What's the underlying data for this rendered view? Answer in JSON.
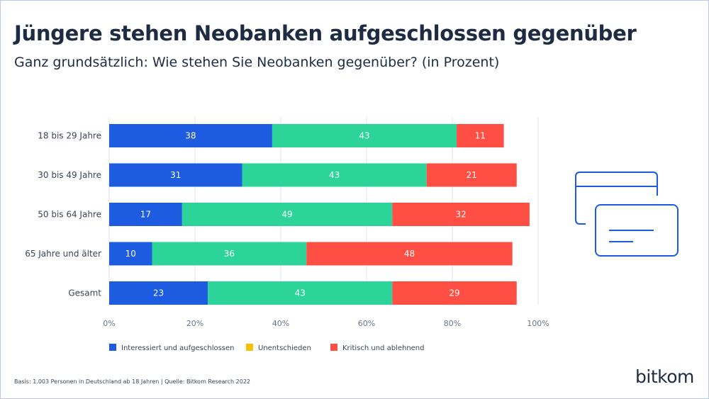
{
  "title": "Jüngere stehen Neobanken aufgeschlossen gegenüber",
  "subtitle": "Ganz grundsätzlich: Wie stehen Sie Neobanken gegenüber? (in Prozent)",
  "footnote": "Basis: 1.003 Personen in Deutschland ab 18 Jahren | Quelle: Bitkom Research 2022",
  "logo": "bitkom",
  "icon": "cards-icon",
  "colors": {
    "series": [
      "#1d5be0",
      "#2dd49a",
      "#ff4e43"
    ],
    "legend": [
      "#1d5be0",
      "#f5c000",
      "#ff4e43"
    ],
    "grid": "#dfe3ea",
    "text": "#3a4556",
    "icon": "#1d5be0"
  },
  "chart_data": {
    "type": "bar",
    "orientation": "horizontal",
    "stacked": true,
    "categories": [
      "18 bis 29 Jahre",
      "30 bis 49 Jahre",
      "50 bis 64 Jahre",
      "65 Jahre und älter",
      "Gesamt"
    ],
    "series": [
      {
        "name": "Interessiert und aufgeschlossen",
        "values": [
          38,
          31,
          17,
          10,
          23
        ]
      },
      {
        "name": "Unentschieden",
        "values": [
          43,
          43,
          49,
          36,
          43
        ]
      },
      {
        "name": "Kritisch und ablehnend",
        "values": [
          11,
          21,
          32,
          48,
          29
        ]
      }
    ],
    "xlim": [
      0,
      100
    ],
    "xticks": [
      0,
      20,
      40,
      60,
      80,
      100
    ],
    "xtick_labels": [
      "0%",
      "20%",
      "40%",
      "60%",
      "80%",
      "100%"
    ],
    "grid": true,
    "legend_position": "bottom"
  }
}
